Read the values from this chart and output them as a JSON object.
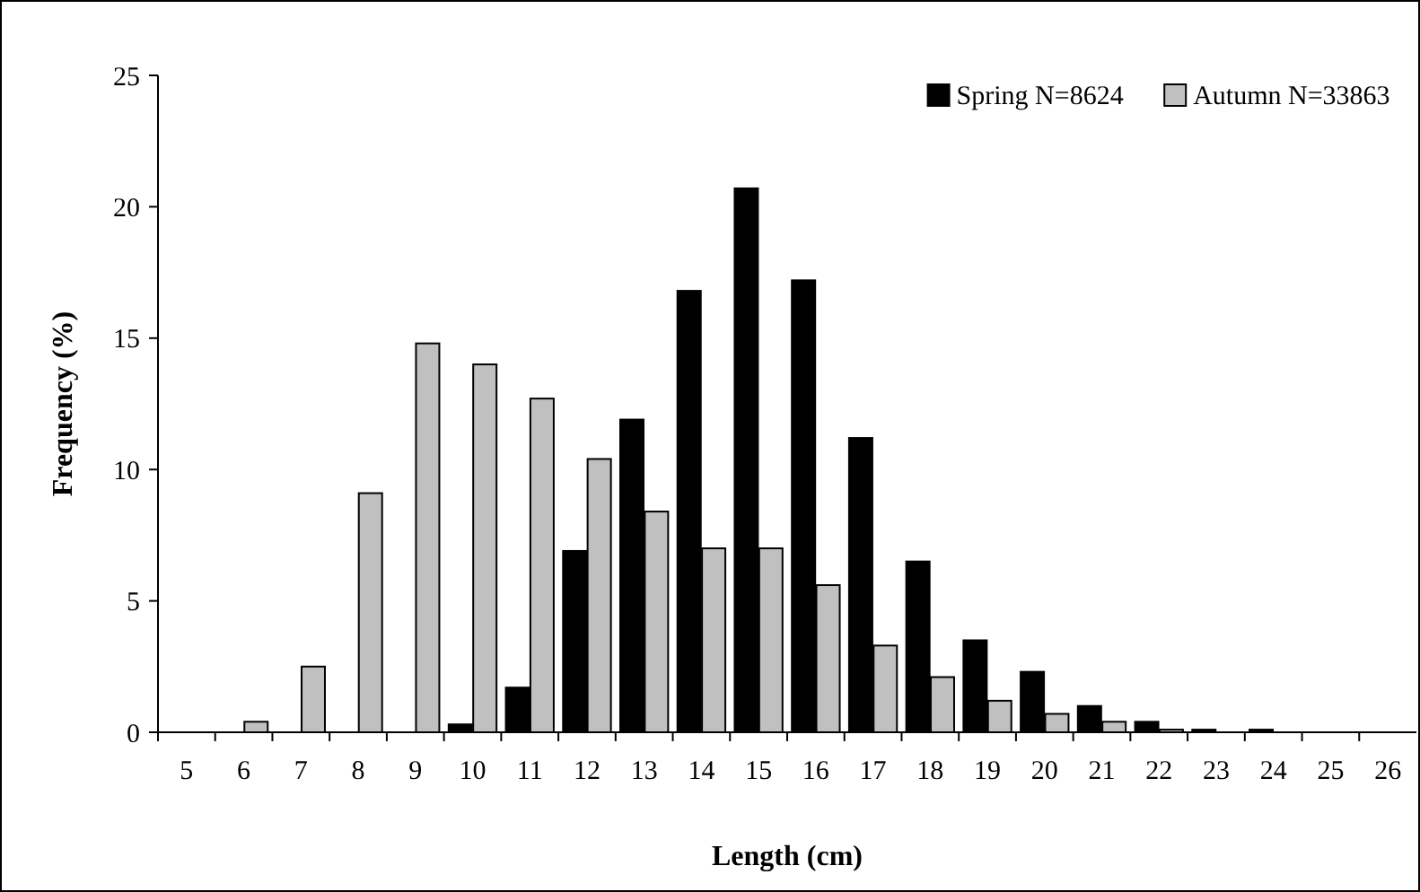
{
  "chart_data": {
    "type": "bar",
    "xlabel": "Length (cm)",
    "ylabel": "Frequency (%)",
    "categories": [
      "5",
      "6",
      "7",
      "8",
      "9",
      "10",
      "11",
      "12",
      "13",
      "14",
      "15",
      "16",
      "17",
      "18",
      "19",
      "20",
      "21",
      "22",
      "23",
      "24",
      "25",
      "26"
    ],
    "series": [
      {
        "name": "Spring N=8624",
        "color": "#000000",
        "values": [
          0,
          0,
          0,
          0,
          0,
          0.3,
          1.7,
          6.9,
          11.9,
          16.8,
          20.7,
          17.2,
          11.2,
          6.5,
          3.5,
          2.3,
          1.0,
          0.4,
          0.1,
          0.1,
          0,
          0
        ]
      },
      {
        "name": "Autumn N=33863",
        "color": "#c0c0c0",
        "values": [
          0,
          0.4,
          2.5,
          9.1,
          14.8,
          14.0,
          12.7,
          10.4,
          8.4,
          7.0,
          7.0,
          5.6,
          3.3,
          2.1,
          1.2,
          0.7,
          0.4,
          0.1,
          0,
          0,
          0,
          0
        ]
      }
    ],
    "ylim": [
      0,
      25
    ],
    "yticks": [
      0,
      5,
      10,
      15,
      20,
      25
    ],
    "grid": false,
    "legend": "top right"
  }
}
